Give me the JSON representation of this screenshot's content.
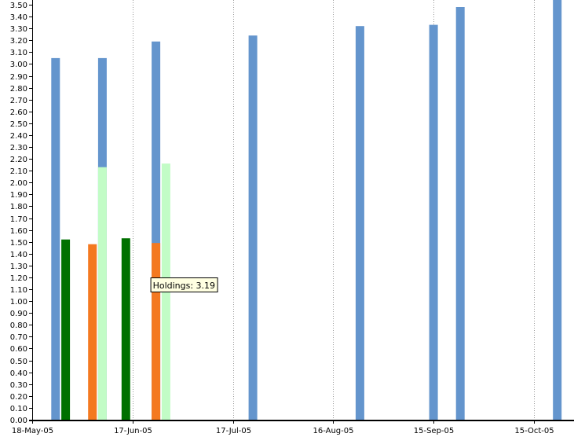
{
  "chart_data": {
    "type": "bar",
    "title": "",
    "xlabel": "",
    "ylabel": "",
    "ylim": [
      0,
      3.5
    ],
    "xlim": [
      "2005-05-18",
      "2005-10-27"
    ],
    "y_ticks": [
      "0.00",
      "0.10",
      "0.20",
      "0.30",
      "0.40",
      "0.50",
      "0.60",
      "0.70",
      "0.80",
      "0.90",
      "1.00",
      "1.10",
      "1.20",
      "1.30",
      "1.40",
      "1.50",
      "1.60",
      "1.70",
      "1.80",
      "1.90",
      "2.00",
      "2.10",
      "2.20",
      "2.30",
      "2.40",
      "2.50",
      "2.60",
      "2.70",
      "2.80",
      "2.90",
      "3.00",
      "3.10",
      "3.20",
      "3.30",
      "3.40",
      "3.50"
    ],
    "x_ticks": [
      {
        "date": "2005-05-18",
        "label": "18-May-05"
      },
      {
        "date": "2005-06-17",
        "label": "17-Jun-05"
      },
      {
        "date": "2005-07-17",
        "label": "17-Jul-05"
      },
      {
        "date": "2005-08-16",
        "label": "16-Aug-05"
      },
      {
        "date": "2005-09-15",
        "label": "15-Sep-05"
      },
      {
        "date": "2005-10-15",
        "label": "15-Oct-05"
      }
    ],
    "grid": "vertical-dotted",
    "legend": "none",
    "series": [
      {
        "name": "Holdings",
        "color": "#6495cd",
        "points": [
          {
            "x": "2005-05-25",
            "y": 3.05
          },
          {
            "x": "2005-06-08",
            "y": 3.05
          },
          {
            "x": "2005-06-24",
            "y": 3.19
          },
          {
            "x": "2005-07-23",
            "y": 3.24
          },
          {
            "x": "2005-08-24",
            "y": 3.32
          },
          {
            "x": "2005-09-15",
            "y": 3.33
          },
          {
            "x": "2005-09-23",
            "y": 3.48
          },
          {
            "x": "2005-10-22",
            "y": 3.56
          }
        ]
      },
      {
        "color": "#007000",
        "points": [
          {
            "x": "2005-05-28",
            "y": 1.52
          },
          {
            "x": "2005-06-15",
            "y": 1.53
          }
        ]
      },
      {
        "color": "#f47920",
        "points": [
          {
            "x": "2005-06-05",
            "y": 1.48
          },
          {
            "x": "2005-06-24",
            "y": 1.49
          }
        ]
      },
      {
        "color": "#c2fcc6",
        "points": [
          {
            "x": "2005-06-08",
            "y": 2.13
          },
          {
            "x": "2005-06-27",
            "y": 2.16
          }
        ]
      }
    ],
    "tooltip": {
      "series": "Holdings",
      "text": "Holdings: 3.19",
      "x": "2005-06-24",
      "y": 3.19
    }
  }
}
